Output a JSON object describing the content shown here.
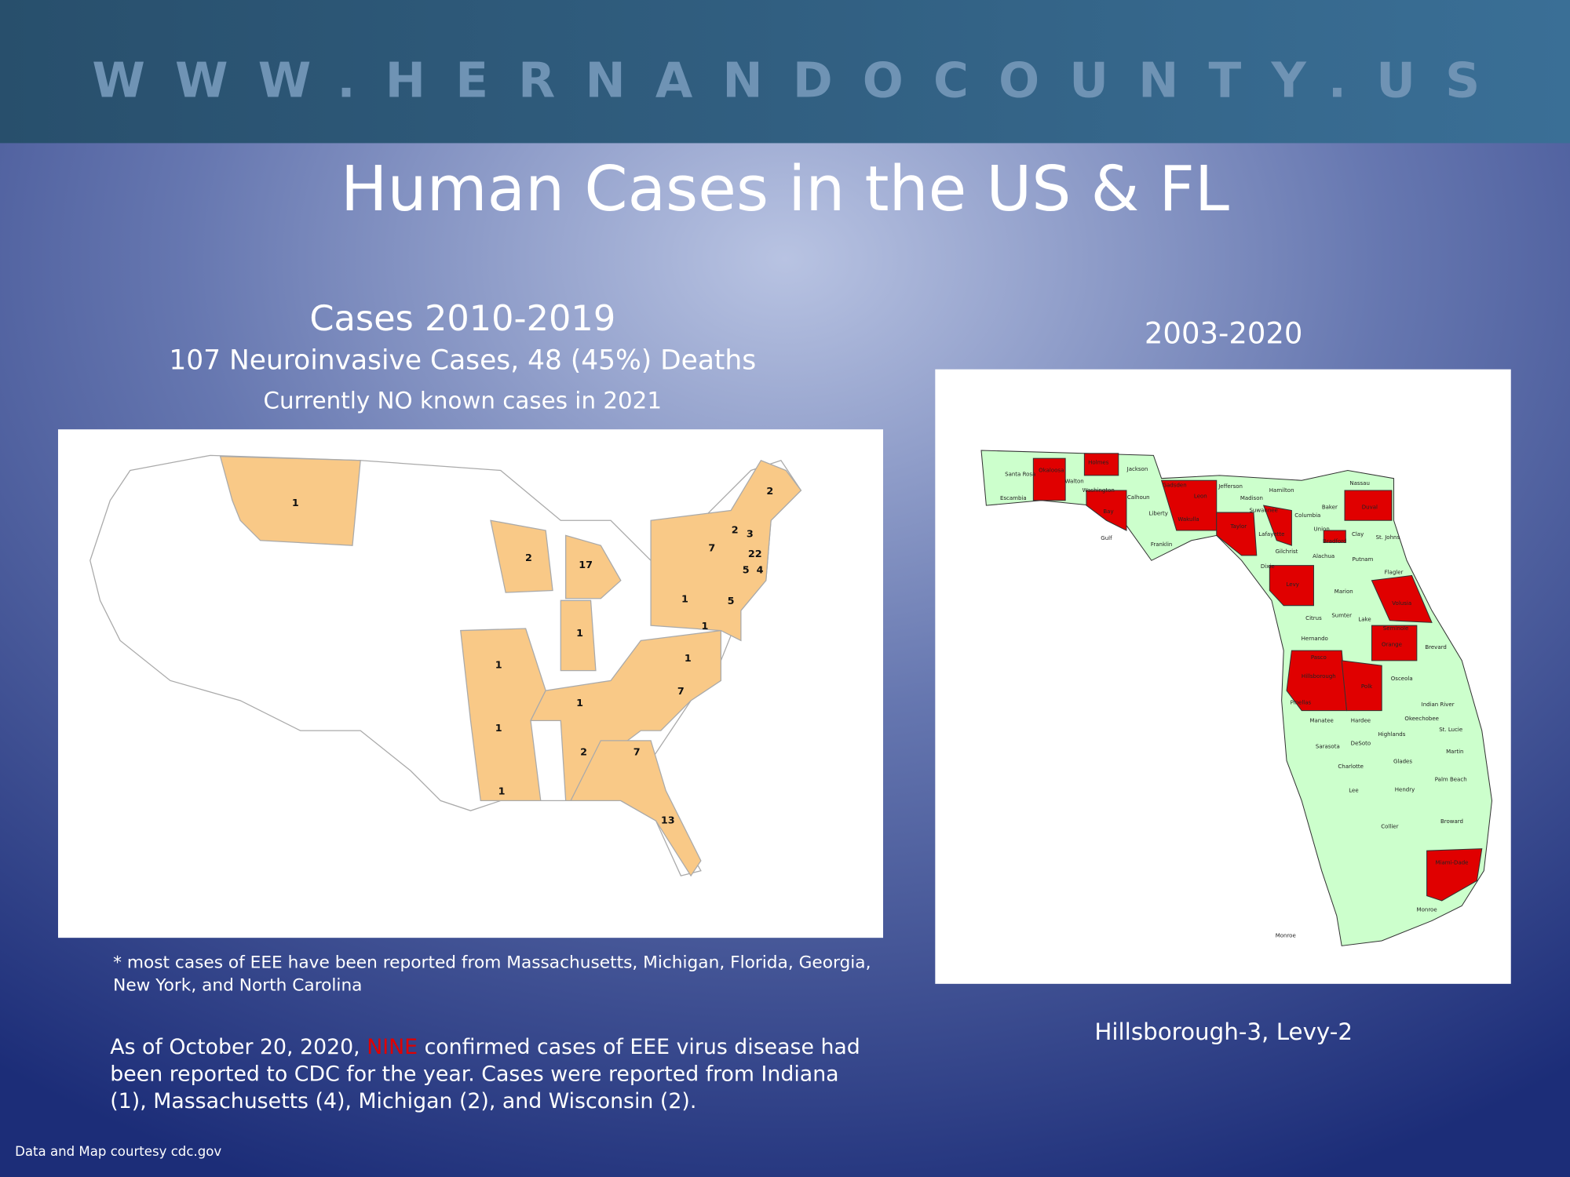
{
  "header": {
    "site": "WWW.HERNANDOCOUNTY.US"
  },
  "title": "Human Cases in the US & FL",
  "us_section": {
    "heading": "Cases 2010-2019",
    "subheading": "107 Neuroinvasive Cases, 48 (45%) Deaths",
    "note": "Currently NO known cases in 2021",
    "case_counts": [
      1,
      2,
      2,
      3,
      7,
      22,
      5,
      4,
      2,
      17,
      1,
      5,
      1,
      1,
      1,
      1,
      7,
      1,
      1,
      2,
      7,
      1,
      13
    ],
    "footnote": [
      "* most cases of EEE have been reported from Massachusetts, Michigan, Florida, Georgia,",
      "New York, and North Carolina"
    ]
  },
  "fl_section": {
    "heading": "2003-2020",
    "caption": "Hillsborough-3, Levy-2",
    "counties": [
      "Santa Rosa",
      "Escambia",
      "Okaloosa",
      "Walton",
      "Holmes",
      "Jackson",
      "Washington",
      "Calhoun",
      "Bay",
      "Gulf",
      "Liberty",
      "Franklin",
      "Gadsden",
      "Leon",
      "Jefferson",
      "Wakulla",
      "Madison",
      "Hamilton",
      "Taylor",
      "Suwannee",
      "Lafayette",
      "Columbia",
      "Baker",
      "Nassau",
      "Duval",
      "Union",
      "Bradford",
      "Clay",
      "St. Johns",
      "Dixie",
      "Gilchrist",
      "Alachua",
      "Putnam",
      "Flagler",
      "Levy",
      "Marion",
      "Volusia",
      "Citrus",
      "Sumter",
      "Lake",
      "Seminole",
      "Hernando",
      "Orange",
      "Brevard",
      "Pasco",
      "Hillsborough",
      "Polk",
      "Osceola",
      "Pinellas",
      "Indian River",
      "Manatee",
      "Hardee",
      "Okeechobee",
      "St. Lucie",
      "Sarasota",
      "DeSoto",
      "Highlands",
      "Martin",
      "Charlotte",
      "Glades",
      "Palm Beach",
      "Lee",
      "Hendry",
      "Collier",
      "Broward",
      "Miami-Dade",
      "Monroe",
      "Monroe"
    ]
  },
  "summary": {
    "before": "As of October 20, 2020, ",
    "highlight": "NINE",
    "after": " confirmed cases of EEE virus disease had",
    "lines": [
      "been reported to CDC for the year. Cases were reported from Indiana",
      "(1), Massachusetts (4), Michigan (2), and Wisconsin (2)."
    ]
  },
  "credit": "Data and Map courtesy cdc.gov"
}
